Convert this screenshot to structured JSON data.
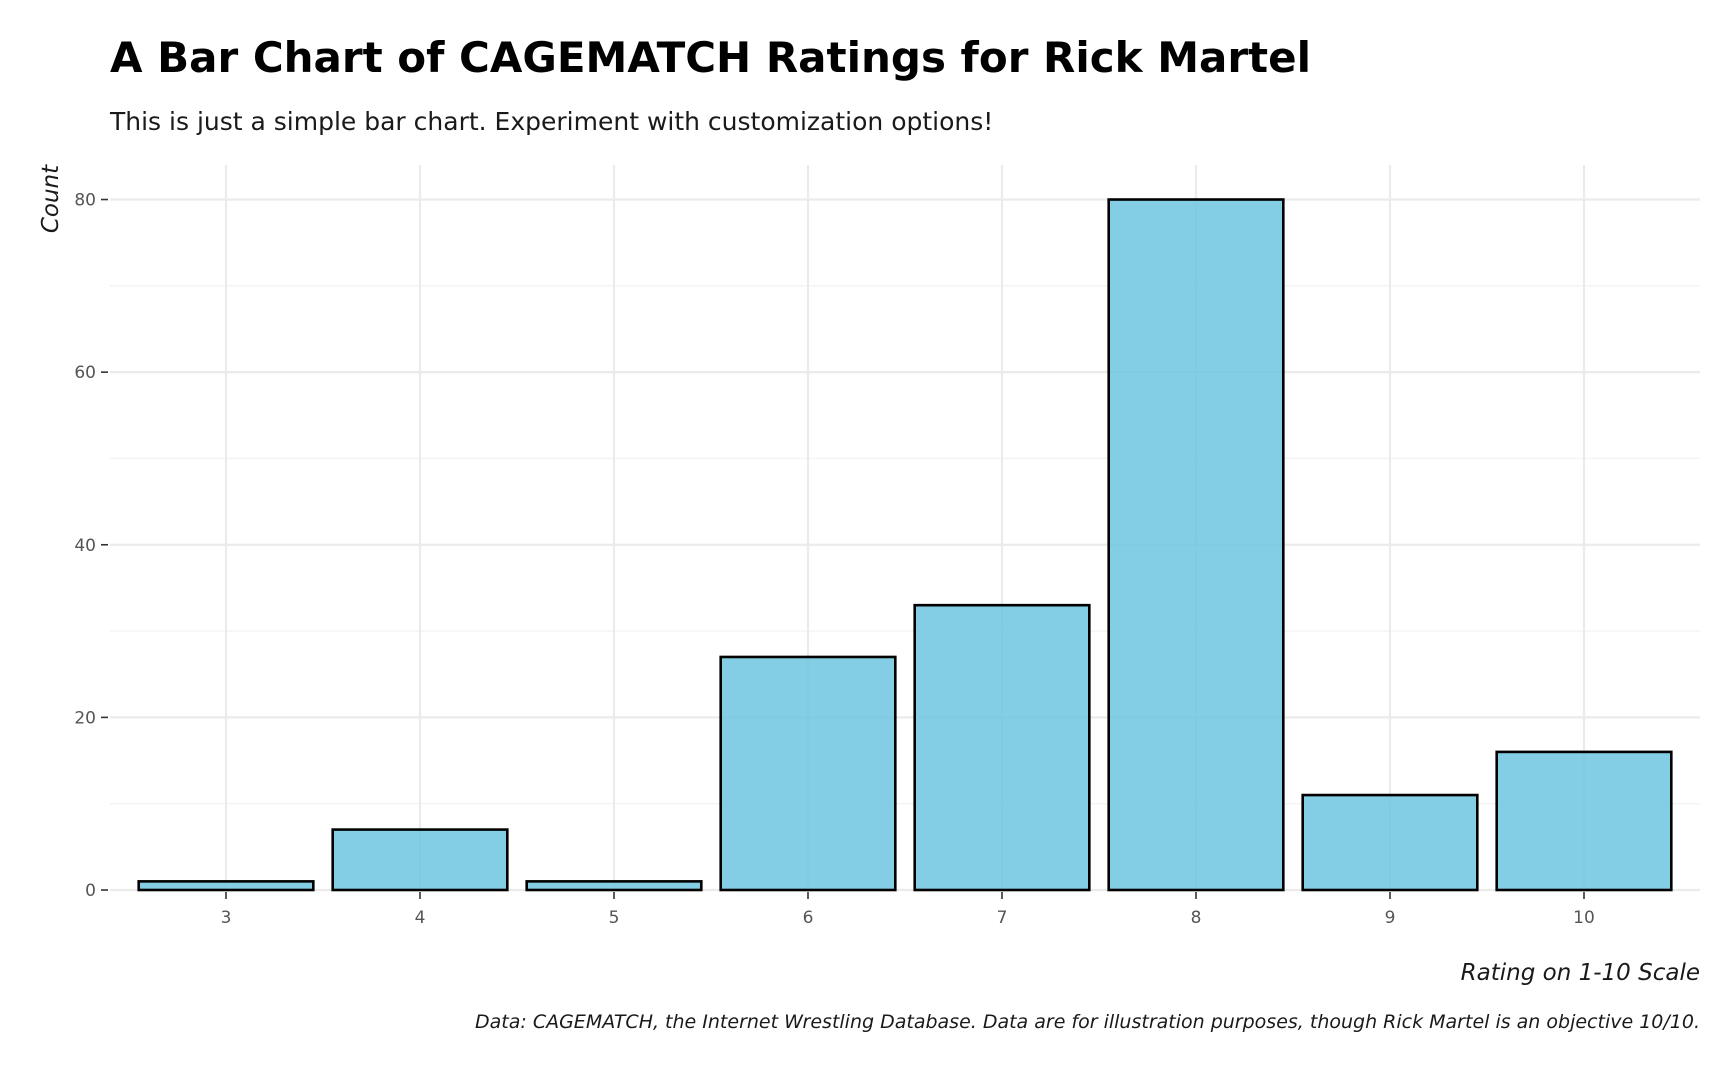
{
  "chart_data": {
    "type": "bar",
    "title": "A Bar Chart of CAGEMATCH Ratings for Rick Martel",
    "subtitle": "This is just a simple bar chart. Experiment with customization options!",
    "xlabel": "Rating on 1-10 Scale",
    "ylabel": "Count",
    "caption": "Data: CAGEMATCH, the Internet Wrestling Database. Data are for illustration purposes, though Rick Martel is an objective 10/10.",
    "categories": [
      "3",
      "4",
      "5",
      "6",
      "7",
      "8",
      "9",
      "10"
    ],
    "values": [
      1,
      7,
      1,
      27,
      33,
      80,
      11,
      16
    ],
    "ylim": [
      0,
      84
    ],
    "yticks": [
      0,
      20,
      40,
      60,
      80
    ],
    "grid": true,
    "legend": "none",
    "bar_color": "#6ec6e0",
    "bar_outline_color": "#000000"
  }
}
